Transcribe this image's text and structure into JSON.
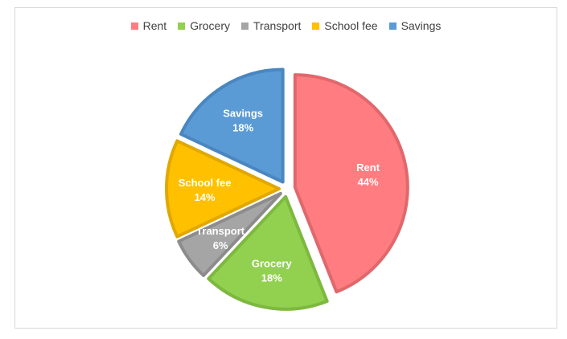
{
  "chart_data": {
    "type": "pie",
    "title": "",
    "legend_position": "top",
    "categories": [
      "Rent",
      "Grocery",
      "Transport",
      "School fee",
      "Savings"
    ],
    "values": [
      44,
      18,
      6,
      14,
      18
    ],
    "value_labels": [
      "44%",
      "18%",
      "6%",
      "14%",
      "18%"
    ],
    "colors": [
      "#FF7C80",
      "#92D050",
      "#A5A5A5",
      "#FFC000",
      "#5B9BD5"
    ],
    "border_colors": [
      "#E0686C",
      "#7DB83F",
      "#8C8C8C",
      "#E0A800",
      "#4A86C0"
    ],
    "exploded": true
  }
}
